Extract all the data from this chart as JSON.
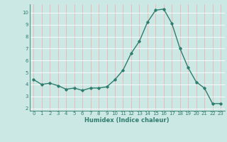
{
  "x": [
    0,
    1,
    2,
    3,
    4,
    5,
    6,
    7,
    8,
    9,
    10,
    11,
    12,
    13,
    14,
    15,
    16,
    17,
    18,
    19,
    20,
    21,
    22,
    23
  ],
  "y": [
    4.4,
    4.0,
    4.1,
    3.9,
    3.6,
    3.7,
    3.5,
    3.7,
    3.7,
    3.8,
    4.4,
    5.2,
    6.6,
    7.6,
    9.2,
    10.2,
    10.3,
    9.1,
    7.0,
    5.4,
    4.2,
    3.7,
    2.4,
    2.4
  ],
  "line_color": "#2e7d6e",
  "marker": "D",
  "marker_size": 1.8,
  "line_width": 1.0,
  "xlabel": "Humidex (Indice chaleur)",
  "xlabel_fontsize": 6.0,
  "bg_color": "#cce8e4",
  "grid_color_h": "#ffffff",
  "grid_color_v": "#f0b0b0",
  "tick_color": "#2e7d6e",
  "label_color": "#2e7d6e",
  "ylim": [
    1.8,
    10.7
  ],
  "yticks": [
    2,
    3,
    4,
    5,
    6,
    7,
    8,
    9,
    10
  ],
  "xlim": [
    -0.5,
    23.5
  ],
  "xticks": [
    0,
    1,
    2,
    3,
    4,
    5,
    6,
    7,
    8,
    9,
    10,
    11,
    12,
    13,
    14,
    15,
    16,
    17,
    18,
    19,
    20,
    21,
    22,
    23
  ],
  "tick_fontsize": 5.0,
  "ylabel_fontsize": 5.0
}
